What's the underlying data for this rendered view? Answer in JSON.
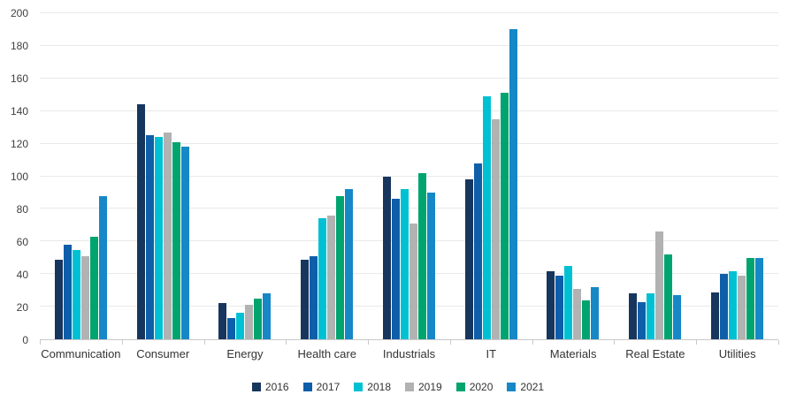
{
  "chart_data": {
    "type": "bar",
    "title": "",
    "xlabel": "",
    "ylabel": "",
    "categories": [
      "Communication",
      "Consumer",
      "Energy",
      "Health care",
      "Industrials",
      "IT",
      "Materials",
      "Real Estate",
      "Utilities"
    ],
    "series": [
      {
        "name": "2016",
        "color": "#17365d",
        "values": [
          49,
          144,
          22,
          49,
          100,
          98,
          42,
          28,
          29
        ]
      },
      {
        "name": "2017",
        "color": "#0f5ea9",
        "values": [
          58,
          125,
          13,
          51,
          86,
          108,
          39,
          23,
          40
        ]
      },
      {
        "name": "2018",
        "color": "#00c1d4",
        "values": [
          55,
          124,
          16,
          74,
          92,
          149,
          45,
          28,
          42
        ]
      },
      {
        "name": "2019",
        "color": "#b2b2b2",
        "values": [
          51,
          127,
          21,
          76,
          71,
          135,
          31,
          66,
          39
        ]
      },
      {
        "name": "2020",
        "color": "#00a46e",
        "values": [
          63,
          121,
          25,
          88,
          102,
          151,
          24,
          52,
          50
        ]
      },
      {
        "name": "2021",
        "color": "#1687c7",
        "values": [
          88,
          118,
          28,
          92,
          90,
          190,
          32,
          27,
          50
        ]
      }
    ],
    "ylim": [
      0,
      200
    ],
    "ytick_step": 20,
    "grid": true,
    "legend_position": "bottom"
  }
}
